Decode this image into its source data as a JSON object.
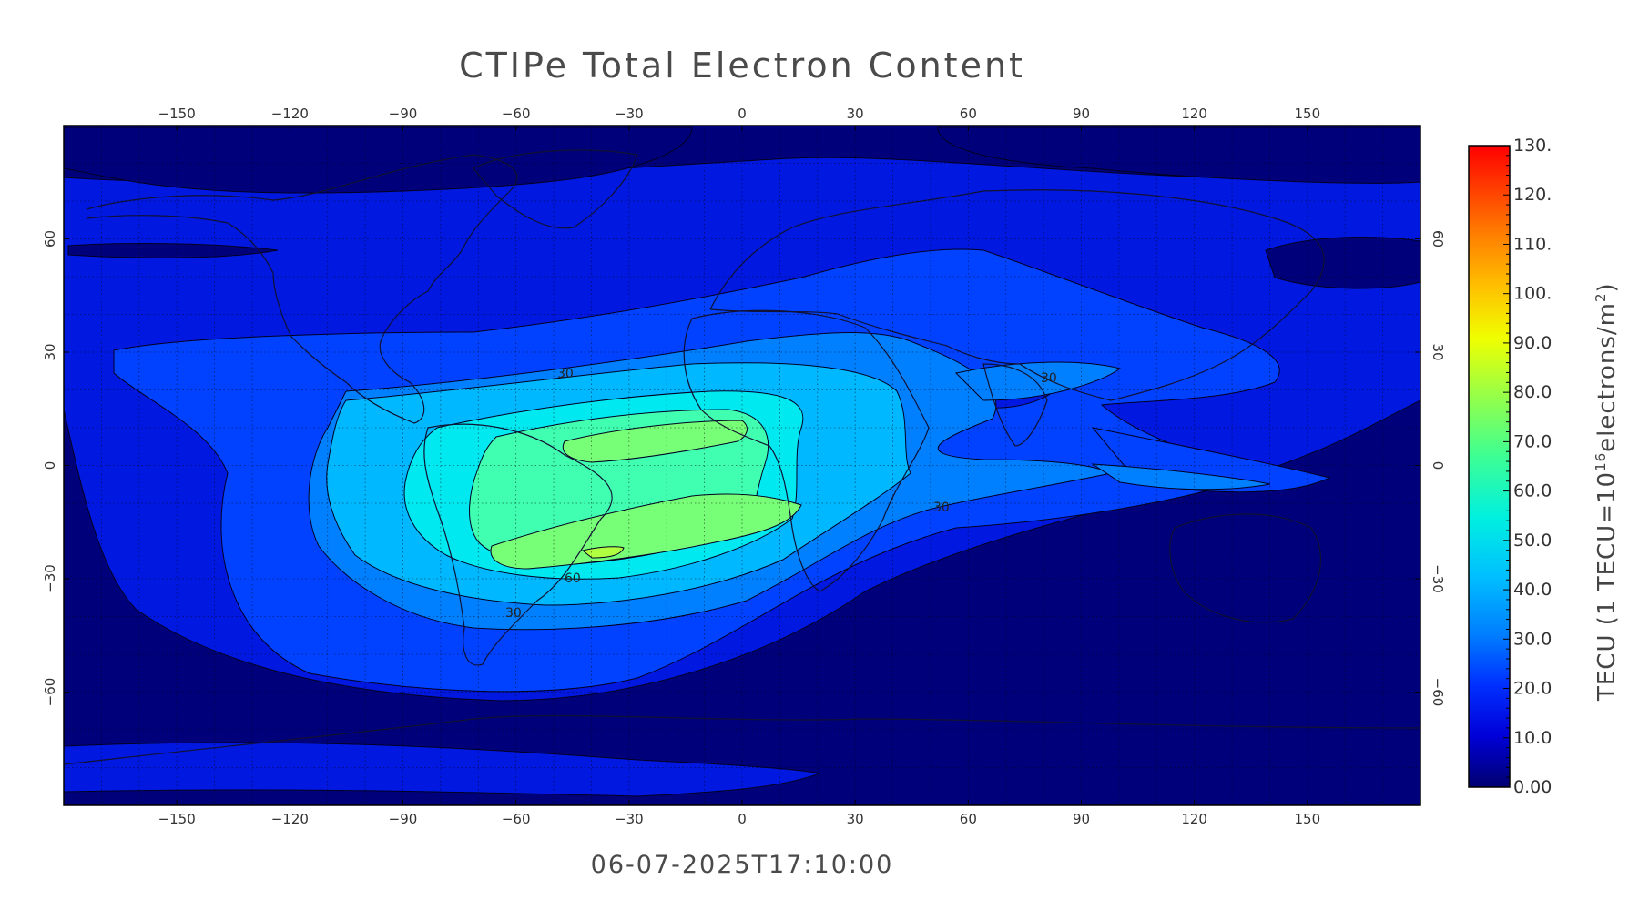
{
  "title": "CTIPe Total Electron Content",
  "timestamp": "06-07-2025T17:10:00",
  "map": {
    "projection": "equirectangular",
    "lon_range": [
      -180,
      180
    ],
    "lat_range": [
      -90,
      90
    ],
    "lon_ticks": [
      -150,
      -120,
      -90,
      -60,
      -30,
      0,
      30,
      60,
      90,
      120,
      150
    ],
    "lat_ticks": [
      60,
      30,
      0,
      -30,
      -60
    ],
    "grid": "dotted 10-degree"
  },
  "colorbar": {
    "title": "TECU (1 TECU=10",
    "title_sup": "16",
    "title_mid": "electrons/m",
    "title_sup2": "2",
    "title_end": ")",
    "labels": [
      "130.",
      "120.",
      "110.",
      "100.",
      "90.0",
      "80.0",
      "70.0",
      "60.0",
      "50.0",
      "40.0",
      "30.0",
      "20.0",
      "10.0",
      "0.00"
    ],
    "min": 0,
    "max": 130
  },
  "contour_labels": [
    "30",
    "30",
    "60",
    "30",
    "30"
  ],
  "colors": {
    "level_0_10": "#00007a",
    "level_10_20": "#0018e0",
    "level_20_30": "#0042ff",
    "level_30_40": "#0080ff",
    "level_40_50": "#00b8ff",
    "level_50_60": "#00e8f0",
    "level_60_70": "#40ffb0",
    "level_70_80": "#78ff78"
  }
}
